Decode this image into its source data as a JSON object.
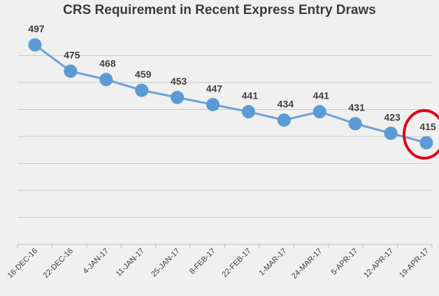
{
  "chart_data": {
    "type": "line",
    "title": "CRS Requirement in Recent Express Entry Draws",
    "categories": [
      "16-DEC-16",
      "22-DEC-16",
      "4-JAN-17",
      "11-JAN-17",
      "25-JAN-17",
      "8-FEB-17",
      "22-FEB-17",
      "1-MAR-17",
      "24-MAR-17",
      "5-APR-17",
      "12-APR-17",
      "19-APR-17"
    ],
    "series": [
      {
        "values": [
          497,
          475,
          468,
          459,
          453,
          447,
          441,
          434,
          441,
          431,
          423,
          415
        ]
      }
    ],
    "ylim": [
      330,
      510
    ],
    "grid": true,
    "legend": "none",
    "highlight": {
      "category": "19-APR-17",
      "color": "#e0001a"
    },
    "colors": {
      "series": "#5b9bd5",
      "line": "#6fa0d6",
      "background": "#f0f0f0"
    }
  }
}
